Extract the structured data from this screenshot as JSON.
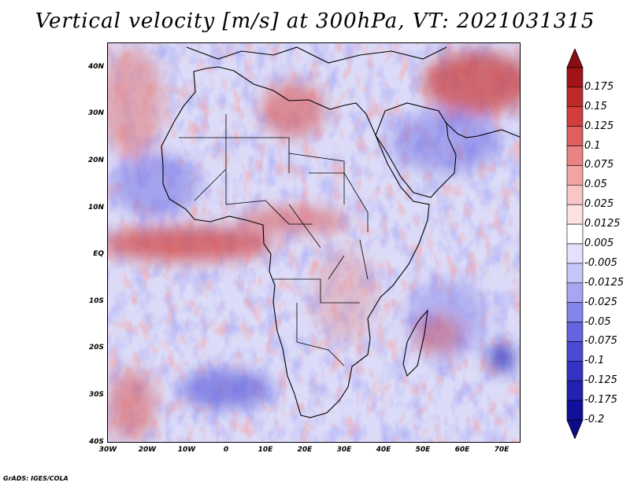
{
  "title": "Vertical velocity [m/s] at 300hPa, VT: 2021031315",
  "credit": "GrADS: IGES/COLA",
  "map": {
    "lon_range": [
      -30,
      75
    ],
    "lat_range": [
      -40,
      45
    ],
    "y_ticks": [
      "40N",
      "30N",
      "20N",
      "10N",
      "EQ",
      "10S",
      "20S",
      "30S",
      "40S"
    ],
    "x_ticks": [
      "30W",
      "20W",
      "10W",
      "0",
      "10E",
      "20E",
      "30E",
      "40E",
      "50E",
      "60E",
      "70E"
    ]
  },
  "colorbar": {
    "labels": [
      "0.175",
      "0.15",
      "0.125",
      "0.1",
      "0.075",
      "0.05",
      "0.025",
      "0.0125",
      "0.005",
      "-0.005",
      "-0.0125",
      "-0.025",
      "-0.05",
      "-0.075",
      "-0.1",
      "-0.125",
      "-0.175",
      "-0.2"
    ],
    "colors": [
      "#a01418",
      "#be2a2a",
      "#d23e3e",
      "#e05e5e",
      "#ea8282",
      "#f2a3a3",
      "#f8c6c6",
      "#fce2e2",
      "#ffffff",
      "#e2e2fc",
      "#c6c6f8",
      "#a6a6f2",
      "#8484ea",
      "#6464e0",
      "#4a4ad4",
      "#3434c4",
      "#2222b0",
      "#10109a"
    ],
    "top_arrow_color": "#8b0f12",
    "bottom_arrow_color": "#0c0c88"
  },
  "colors": {
    "neutral_fill": "#dcdcf8",
    "positive": "#e07070",
    "negative": "#6c6ce4",
    "coastline": "#000000"
  }
}
